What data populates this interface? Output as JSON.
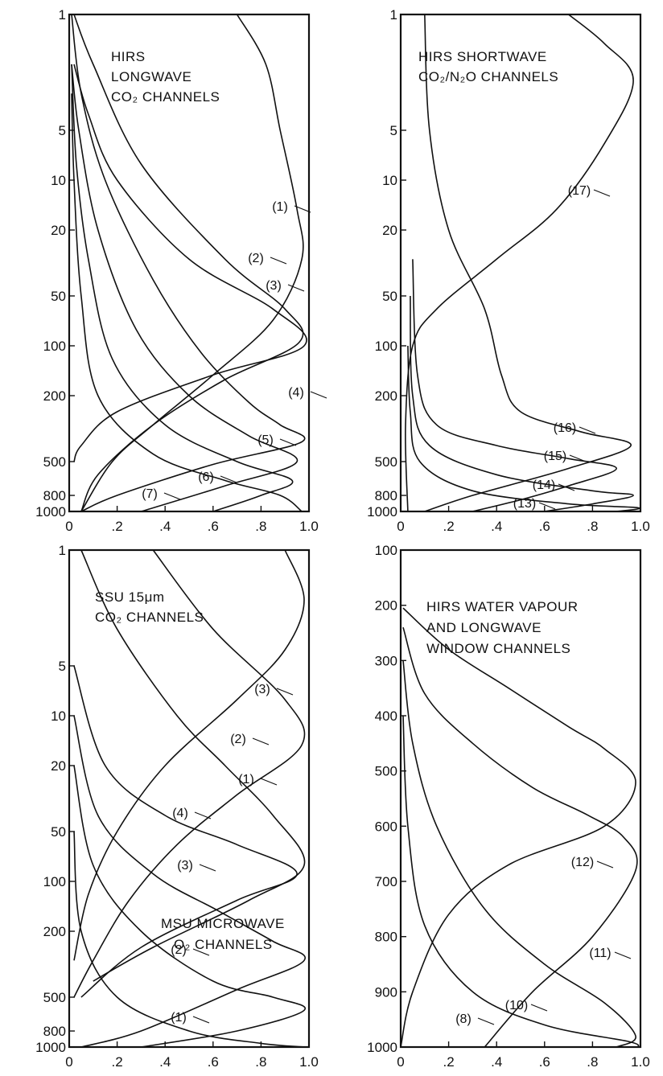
{
  "chart_data": [
    {
      "type": "line",
      "title": [
        "HIRS",
        "LONGWAVE",
        "CO₂ CHANNELS"
      ],
      "y_scale": "log",
      "ylim": [
        1000,
        1
      ],
      "xlim": [
        0,
        1
      ],
      "x_tick_labels": [
        "0",
        ".2",
        ".4",
        ".6",
        ".8",
        "1.0"
      ],
      "y_tick_labels": [
        "1",
        "5",
        "10",
        "20",
        "50",
        "100",
        "200",
        "500",
        "800",
        "1000"
      ],
      "series": [
        {
          "name": "(1)",
          "points": [
            [
              0.7,
              1
            ],
            [
              0.82,
              2
            ],
            [
              0.88,
              5
            ],
            [
              0.95,
              15
            ],
            [
              0.97,
              30
            ],
            [
              0.85,
              70
            ],
            [
              0.6,
              150
            ],
            [
              0.35,
              300
            ],
            [
              0.18,
              500
            ],
            [
              0.05,
              1000
            ]
          ]
        },
        {
          "name": "(2)",
          "points": [
            [
              0.02,
              1
            ],
            [
              0.1,
              2
            ],
            [
              0.3,
              8
            ],
            [
              0.65,
              30
            ],
            [
              0.9,
              60
            ],
            [
              0.96,
              95
            ],
            [
              0.65,
              160
            ],
            [
              0.35,
              300
            ],
            [
              0.12,
              600
            ],
            [
              0.05,
              1000
            ]
          ]
        },
        {
          "name": "(3)",
          "points": [
            [
              0.02,
              2
            ],
            [
              0.08,
              4
            ],
            [
              0.2,
              10
            ],
            [
              0.5,
              30
            ],
            [
              0.85,
              60
            ],
            [
              0.98,
              100
            ],
            [
              0.6,
              150
            ],
            [
              0.2,
              250
            ],
            [
              0.05,
              400
            ],
            [
              0.02,
              500
            ]
          ]
        },
        {
          "name": "(4)",
          "points": [
            [
              0.01,
              1
            ],
            [
              0.05,
              3
            ],
            [
              0.15,
              10
            ],
            [
              0.35,
              40
            ],
            [
              0.55,
              110
            ],
            [
              0.75,
              220
            ],
            [
              0.88,
              300
            ],
            [
              0.97,
              380
            ],
            [
              0.6,
              520
            ],
            [
              0.2,
              800
            ],
            [
              0.05,
              1000
            ]
          ]
        },
        {
          "name": "(5)",
          "points": [
            [
              0.01,
              2
            ],
            [
              0.04,
              5
            ],
            [
              0.12,
              20
            ],
            [
              0.28,
              80
            ],
            [
              0.5,
              200
            ],
            [
              0.75,
              350
            ],
            [
              0.95,
              500
            ],
            [
              0.65,
              700
            ],
            [
              0.3,
              1000
            ]
          ]
        },
        {
          "name": "(6)",
          "points": [
            [
              0.01,
              2
            ],
            [
              0.03,
              8
            ],
            [
              0.08,
              30
            ],
            [
              0.18,
              120
            ],
            [
              0.4,
              300
            ],
            [
              0.7,
              500
            ],
            [
              0.93,
              650
            ],
            [
              0.8,
              800
            ],
            [
              0.6,
              1000
            ]
          ]
        },
        {
          "name": "(7)",
          "points": [
            [
              0.01,
              3
            ],
            [
              0.02,
              10
            ],
            [
              0.05,
              50
            ],
            [
              0.12,
              200
            ],
            [
              0.35,
              450
            ],
            [
              0.65,
              650
            ],
            [
              0.88,
              800
            ],
            [
              0.97,
              1000
            ]
          ]
        }
      ],
      "annotations": [
        "(1)",
        "(2)",
        "(3)",
        "(4)",
        "(5)",
        "(6)",
        "(7)"
      ]
    },
    {
      "type": "line",
      "title": [
        "HIRS SHORTWAVE",
        "CO₂/N₂O CHANNELS"
      ],
      "y_scale": "log",
      "ylim": [
        1000,
        1
      ],
      "xlim": [
        0,
        1
      ],
      "x_tick_labels": [
        "0",
        ".2",
        ".4",
        ".6",
        ".8",
        "1.0"
      ],
      "y_tick_labels": [
        "1",
        "5",
        "10",
        "20",
        "50",
        "100",
        "200",
        "500",
        "800",
        "1000"
      ],
      "series": [
        {
          "name": "(17)",
          "points": [
            [
              0.7,
              1
            ],
            [
              0.85,
              1.5
            ],
            [
              0.97,
              2.5
            ],
            [
              0.85,
              6
            ],
            [
              0.65,
              15
            ],
            [
              0.4,
              30
            ],
            [
              0.15,
              60
            ],
            [
              0.05,
              100
            ],
            [
              0.02,
              300
            ],
            [
              0.03,
              1000
            ]
          ]
        },
        {
          "name": "(16)",
          "points": [
            [
              0.1,
              1
            ],
            [
              0.12,
              5
            ],
            [
              0.2,
              20
            ],
            [
              0.35,
              60
            ],
            [
              0.42,
              150
            ],
            [
              0.5,
              250
            ],
            [
              0.75,
              330
            ],
            [
              0.96,
              400
            ],
            [
              0.7,
              550
            ],
            [
              0.3,
              800
            ],
            [
              0.1,
              1000
            ]
          ]
        },
        {
          "name": "(15)",
          "points": [
            [
              0.05,
              30
            ],
            [
              0.07,
              150
            ],
            [
              0.15,
              300
            ],
            [
              0.4,
              400
            ],
            [
              0.7,
              480
            ],
            [
              0.9,
              550
            ],
            [
              0.7,
              700
            ],
            [
              0.5,
              850
            ],
            [
              0.3,
              1000
            ]
          ]
        },
        {
          "name": "(14)",
          "points": [
            [
              0.04,
              50
            ],
            [
              0.05,
              200
            ],
            [
              0.12,
              400
            ],
            [
              0.4,
              600
            ],
            [
              0.8,
              750
            ],
            [
              0.97,
              800
            ],
            [
              0.8,
              900
            ],
            [
              0.6,
              1000
            ]
          ]
        },
        {
          "name": "(13)",
          "points": [
            [
              0.03,
              100
            ],
            [
              0.04,
              250
            ],
            [
              0.08,
              500
            ],
            [
              0.3,
              750
            ],
            [
              0.7,
              900
            ],
            [
              0.99,
              950
            ],
            [
              0.9,
              1000
            ]
          ]
        }
      ],
      "annotations": [
        "(13)",
        "(14)",
        "(15)",
        "(16)",
        "(17)"
      ]
    },
    {
      "type": "line",
      "title": [
        "SSU 15μm",
        "CO₂ CHANNELS"
      ],
      "y_scale": "log",
      "ylim": [
        1000,
        1
      ],
      "xlim": [
        0,
        1
      ],
      "x_tick_labels": [
        "0",
        ".2",
        ".4",
        ".6",
        ".8",
        "1.0"
      ],
      "y_tick_labels": [
        "1",
        "5",
        "10",
        "20",
        "50",
        "100",
        "200",
        "500",
        "800",
        "1000"
      ],
      "series": [
        {
          "name": "SSU (3)",
          "points": [
            [
              0.9,
              1
            ],
            [
              0.98,
              2
            ],
            [
              0.9,
              4
            ],
            [
              0.7,
              8
            ],
            [
              0.4,
              20
            ],
            [
              0.2,
              50
            ],
            [
              0.08,
              120
            ],
            [
              0.02,
              300
            ]
          ]
        },
        {
          "name": "SSU (2)",
          "points": [
            [
              0.35,
              1
            ],
            [
              0.6,
              3
            ],
            [
              0.9,
              8
            ],
            [
              0.97,
              15
            ],
            [
              0.7,
              30
            ],
            [
              0.45,
              60
            ],
            [
              0.25,
              130
            ],
            [
              0.1,
              300
            ],
            [
              0.02,
              500
            ]
          ]
        },
        {
          "name": "SSU (1)",
          "points": [
            [
              0.05,
              1
            ],
            [
              0.2,
              3
            ],
            [
              0.45,
              10
            ],
            [
              0.65,
              20
            ],
            [
              0.85,
              40
            ],
            [
              0.98,
              80
            ],
            [
              0.75,
              130
            ],
            [
              0.35,
              250
            ],
            [
              0.1,
              400
            ]
          ]
        },
        {
          "name": "MSU (4)",
          "points": [
            [
              0.02,
              5
            ],
            [
              0.15,
              20
            ],
            [
              0.4,
              40
            ],
            [
              0.7,
              60
            ],
            [
              0.95,
              90
            ],
            [
              0.7,
              130
            ],
            [
              0.3,
              250
            ],
            [
              0.05,
              500
            ]
          ]
        },
        {
          "name": "MSU (3)",
          "points": [
            [
              0.02,
              10
            ],
            [
              0.12,
              40
            ],
            [
              0.35,
              90
            ],
            [
              0.62,
              150
            ],
            [
              0.85,
              230
            ],
            [
              0.98,
              300
            ],
            [
              0.7,
              450
            ],
            [
              0.3,
              800
            ],
            [
              0.05,
              1000
            ]
          ]
        },
        {
          "name": "MSU (2)",
          "points": [
            [
              0.02,
              20
            ],
            [
              0.1,
              80
            ],
            [
              0.3,
              200
            ],
            [
              0.6,
              400
            ],
            [
              0.85,
              500
            ],
            [
              0.98,
              600
            ],
            [
              0.7,
              800
            ],
            [
              0.3,
              1000
            ]
          ]
        },
        {
          "name": "MSU (1)",
          "points": [
            [
              0.02,
              50
            ],
            [
              0.05,
              200
            ],
            [
              0.2,
              500
            ],
            [
              0.5,
              800
            ],
            [
              0.8,
              950
            ],
            [
              0.98,
              1000
            ]
          ]
        }
      ],
      "annotations": [
        "(1)",
        "(2)",
        "(3)",
        "(4)",
        "(3)",
        "(2)",
        "(1)"
      ],
      "text_labels": [
        "MSU MICROWAVE",
        "O₂ CHANNELS"
      ]
    },
    {
      "type": "line",
      "title": [
        "HIRS WATER VAPOUR",
        "AND LONGWAVE",
        "WINDOW CHANNELS"
      ],
      "y_scale": "linear",
      "ylim": [
        1000,
        100
      ],
      "xlim": [
        0,
        1
      ],
      "x_tick_labels": [
        "0",
        ".2",
        ".4",
        ".6",
        ".8",
        "1.0"
      ],
      "y_tick_labels": [
        "100",
        "200",
        "300",
        "400",
        "500",
        "600",
        "700",
        "800",
        "900",
        "1000"
      ],
      "series": [
        {
          "name": "(12)",
          "points": [
            [
              0.01,
              205
            ],
            [
              0.2,
              280
            ],
            [
              0.45,
              350
            ],
            [
              0.7,
              420
            ],
            [
              0.85,
              460
            ],
            [
              0.98,
              520
            ],
            [
              0.85,
              600
            ],
            [
              0.45,
              670
            ],
            [
              0.2,
              760
            ],
            [
              0.05,
              900
            ],
            [
              0.0,
              1000
            ]
          ]
        },
        {
          "name": "(11)",
          "points": [
            [
              0.01,
              240
            ],
            [
              0.1,
              360
            ],
            [
              0.3,
              450
            ],
            [
              0.55,
              530
            ],
            [
              0.78,
              580
            ],
            [
              0.93,
              620
            ],
            [
              0.98,
              680
            ],
            [
              0.8,
              800
            ],
            [
              0.55,
              900
            ],
            [
              0.35,
              1000
            ]
          ]
        },
        {
          "name": "(10)",
          "points": [
            [
              0.01,
              300
            ],
            [
              0.05,
              450
            ],
            [
              0.15,
              600
            ],
            [
              0.35,
              750
            ],
            [
              0.6,
              850
            ],
            [
              0.85,
              920
            ],
            [
              0.98,
              980
            ],
            [
              0.9,
              1000
            ]
          ]
        },
        {
          "name": "(8)",
          "points": [
            [
              0.01,
              400
            ],
            [
              0.03,
              600
            ],
            [
              0.1,
              780
            ],
            [
              0.3,
              900
            ],
            [
              0.6,
              960
            ],
            [
              0.95,
              990
            ],
            [
              0.99,
              1000
            ]
          ]
        }
      ],
      "annotations": [
        "(8)",
        "(10)",
        "(11)",
        "(12)"
      ]
    }
  ]
}
